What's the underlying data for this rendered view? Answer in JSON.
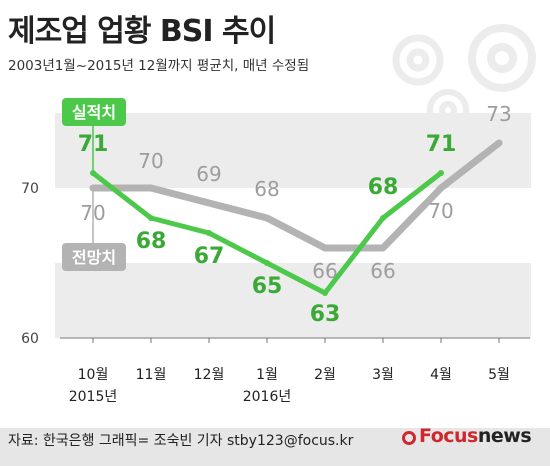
{
  "title": "제조업 업황 BSI 추이",
  "subtitle": "2003년1월~2015년 12월까지 평균치, 매년 수정됨",
  "footer": {
    "source": "자료: 한국은행   그래픽= 조숙빈 기자 stby123@focus.kr",
    "brand_focus": "Focus",
    "brand_news": "news"
  },
  "colors": {
    "actual": "#4cc84a",
    "forecast": "#b3b3b3",
    "band": "#ececec",
    "label_actual": "#3aa936",
    "label_forecast": "#9d9d9d"
  },
  "chart_data": {
    "type": "line",
    "categories": [
      "10월",
      "11월",
      "12월",
      "1월",
      "2월",
      "3월",
      "4월",
      "5월"
    ],
    "year_labels": [
      "2015년",
      "",
      "",
      "2016년",
      "",
      "",
      "",
      ""
    ],
    "series": [
      {
        "name": "실적치",
        "values": [
          71,
          68,
          67,
          65,
          63,
          68,
          71,
          null
        ]
      },
      {
        "name": "전망치",
        "values": [
          70,
          70,
          69,
          68,
          66,
          66,
          70,
          73
        ]
      }
    ],
    "y_ticks": [
      60,
      70
    ],
    "ylim": [
      60,
      74
    ],
    "grid": false,
    "shaded_bands": true
  }
}
